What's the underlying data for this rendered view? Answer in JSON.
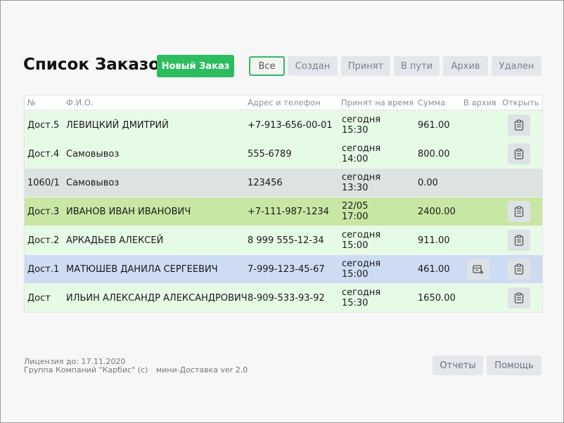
{
  "page": {
    "title": "Список Заказов"
  },
  "toolbar": {
    "new_order": "Новый Заказ",
    "filters": [
      "Все",
      "Создан",
      "Принят",
      "В пути",
      "Архив",
      "Удален"
    ],
    "active_filter": "Все"
  },
  "table": {
    "headers": [
      "№",
      "Ф.И.О.",
      "Адрес и телефон",
      "Принят на время",
      "Сумма",
      "В архив",
      "Открыть"
    ],
    "rows": [
      {
        "num": "Дост.5",
        "name": "ЛЕВИЦКИЙ ДМИТРИЙ",
        "phone": "+7-913-656-00-01",
        "day": "сегодня",
        "time": "15:30",
        "sum": "961.00",
        "status_color": "green"
      },
      {
        "num": "Дост.4",
        "name": "Самовывоз",
        "phone": "555-6789",
        "day": "сегодня",
        "time": "14:00",
        "sum": "800.00",
        "status_color": "green"
      },
      {
        "num": "1060/1",
        "name": "Самовывоз",
        "phone": "123456",
        "day": "сегодня",
        "time": "13:30",
        "sum": "0.00",
        "status_color": "grey"
      },
      {
        "num": "Дост.3",
        "name": "ИВАНОВ ИВАН ИВАНОВИЧ",
        "phone": "+7-111-987-1234",
        "day": "22/05",
        "time": "17:00",
        "sum": "2400.00",
        "status_color": "olive"
      },
      {
        "num": "Дост.2",
        "name": "АРКАДЬЕВ АЛЕКСЕЙ",
        "phone": "8 999 555-12-34",
        "day": "сегодня",
        "time": "15:00",
        "sum": "911.00",
        "status_color": "green"
      },
      {
        "num": "Дост.1",
        "name": "МАТЮШЕВ ДАНИЛА СЕРГЕЕВИЧ",
        "phone": "7-999-123-45-67",
        "day": "сегодня",
        "time": "15:00",
        "sum": "461.00",
        "status_color": "blue"
      },
      {
        "num": "Дост",
        "name": "ИЛЬИН АЛЕКСАНДР АЛЕКСАНДРОВИЧ",
        "phone": "8-909-533-93-92",
        "day": "сегодня",
        "time": "15:30",
        "sum": "1650.00",
        "status_color": "green"
      }
    ]
  },
  "footer": {
    "license": "Лицензия до: 17.11.2020",
    "company": "Группа Компаний \"Карбис\" (c)",
    "version": "мини-Доставка ver 2.0",
    "reports": "Отчеты",
    "help": "Помощь"
  },
  "icons": {
    "open": "clipboard-icon",
    "archive": "archive-box-icon"
  },
  "colors": {
    "accent": "#2dbd60",
    "row_green": "#e6fbe6",
    "row_grey": "#dde3e0",
    "row_olive": "#c8e7a4",
    "row_blue": "#cddcf2"
  }
}
